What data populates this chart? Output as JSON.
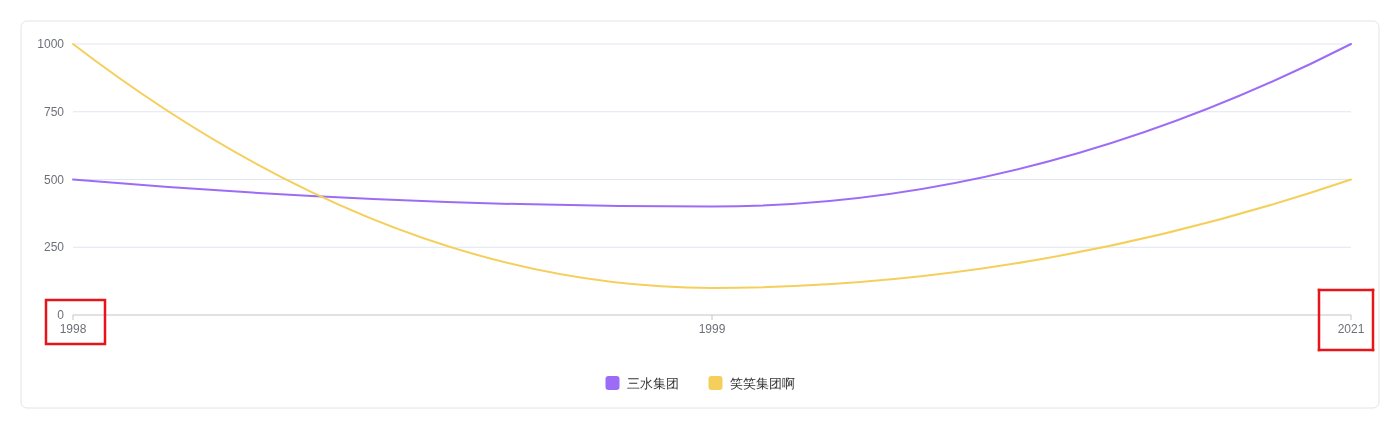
{
  "chart_data": {
    "type": "line",
    "categories": [
      "1998",
      "1999",
      "2021"
    ],
    "series": [
      {
        "name": "三水集团",
        "color": "#9d6cf7",
        "values": [
          500,
          400,
          1000
        ]
      },
      {
        "name": "笑笑集团啊",
        "color": "#f5cf5b",
        "values": [
          1000,
          100,
          500
        ]
      }
    ],
    "ylim": [
      0,
      1000
    ],
    "yticks": [
      0,
      250,
      500,
      750,
      1000
    ],
    "grid": "y",
    "legend": "bottom",
    "marker": "none",
    "line_style": "solid"
  }
}
